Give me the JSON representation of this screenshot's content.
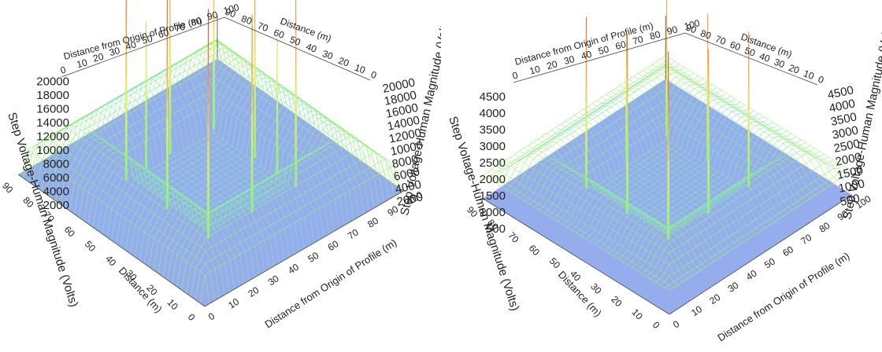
{
  "chart_data": [
    {
      "type": "surface3d",
      "title": "",
      "x_label": "Distance from Origin of Profile (m)",
      "y_label": "Distance (m)",
      "z_label": "Step Voltage-Human Magnitude (Volts)",
      "z_label_right": "Step Voltage-Human Magnitude (Volts)",
      "z_label_left": "Step Voltage-Human Magnitude (Volts)",
      "x_ticks": [
        "0",
        "10",
        "20",
        "30",
        "40",
        "50",
        "60",
        "70",
        "80",
        "90",
        "100"
      ],
      "y_ticks": [
        "0",
        "10",
        "20",
        "30",
        "40",
        "50",
        "60",
        "70",
        "80",
        "90"
      ],
      "y_ticks_top": [
        "90",
        "80",
        "70",
        "60",
        "50",
        "40",
        "30",
        "20",
        "10",
        "0"
      ],
      "z_ticks": [
        "2000",
        "4000",
        "6000",
        "8000",
        "10000",
        "12000",
        "14000",
        "16000",
        "18000",
        "20000"
      ],
      "z_ticks_right": [
        "2000",
        "4000",
        "6000",
        "8000",
        "10000",
        "12000",
        "14000",
        "16000",
        "18000",
        "20000"
      ],
      "z_range": [
        2000,
        20000
      ],
      "x_range": [
        0,
        100
      ],
      "y_range": [
        0,
        90
      ],
      "colormap": [
        "#3a4fd8",
        "#4fa7ef",
        "#7fe3d6",
        "#9cf07a",
        "#e8ee6a",
        "#f0a24a",
        "#e04a2a"
      ],
      "peaks_approx": [
        20000,
        19000,
        18500,
        17000,
        16000,
        15500,
        15000,
        14500,
        12000,
        11000
      ]
    },
    {
      "type": "surface3d",
      "title": "",
      "x_label": "Distance from Origin of Profile (m)",
      "y_label": "Distance (m)",
      "z_label": "Step Voltage-Human Magnitude (Volts)",
      "z_label_right": "Step Voltage-Human Magnitude (Volts)",
      "z_label_left": "Step Voltage-Human Magnitude (Volts)",
      "x_ticks": [
        "0",
        "10",
        "20",
        "30",
        "40",
        "50",
        "60",
        "70",
        "80",
        "90",
        "100"
      ],
      "y_ticks": [
        "0",
        "10",
        "20",
        "30",
        "40",
        "50",
        "60",
        "70",
        "80",
        "90"
      ],
      "y_ticks_top": [
        "90",
        "80",
        "70",
        "60",
        "50",
        "40",
        "30",
        "20",
        "10",
        "0"
      ],
      "z_ticks": [
        "500",
        "1000",
        "1500",
        "2000",
        "2500",
        "3000",
        "3500",
        "4000",
        "4500"
      ],
      "z_ticks_right": [
        "500",
        "1000",
        "1500",
        "2000",
        "2500",
        "3000",
        "3500",
        "4000",
        "4500"
      ],
      "z_range": [
        500,
        4500
      ],
      "x_range": [
        0,
        100
      ],
      "y_range": [
        0,
        90
      ],
      "colormap": [
        "#3a4fd8",
        "#4fa7ef",
        "#7fe3d6",
        "#9cf07a",
        "#e8ee6a",
        "#f0a24a",
        "#e04a2a"
      ],
      "peaks_approx": [
        4500,
        4300,
        4100,
        3900,
        3700,
        3500,
        3300,
        3000
      ]
    }
  ]
}
